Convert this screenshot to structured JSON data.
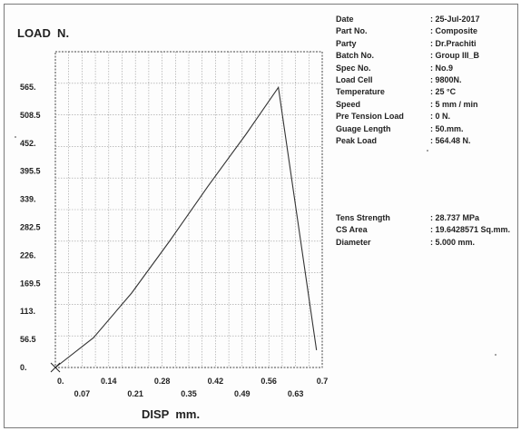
{
  "chart_data": {
    "type": "line",
    "ylabel": "LOAD  N.",
    "xlabel": "DISP  mm.",
    "xlim": [
      0,
      0.7
    ],
    "ylim": [
      0,
      565
    ],
    "x_ticks_row1": [
      "0.",
      "0.14",
      "0.28",
      "0.42",
      "0.56",
      "0.7"
    ],
    "x_ticks_row2": [
      "0.07",
      "0.21",
      "0.35",
      "0.49",
      "0.63"
    ],
    "y_ticks": [
      "0.",
      "56.5",
      "113.",
      "169.5",
      "226.",
      "282.5",
      "339.",
      "395.5",
      "452.",
      "508.5",
      "565."
    ],
    "grid": true,
    "series": [
      {
        "x": [
          0.0,
          0.1,
          0.2,
          0.3,
          0.4,
          0.5,
          0.585,
          0.685
        ],
        "y": [
          0,
          60,
          150,
          255,
          365,
          470,
          564.48,
          35
        ]
      }
    ]
  },
  "info": [
    {
      "key": "Date",
      "value": ": 25-Jul-2017"
    },
    {
      "key": "Part No.",
      "value": ": Composite"
    },
    {
      "key": "Party",
      "value": ": Dr.Prachiti"
    },
    {
      "key": "Batch No.",
      "value": ": Group III_B"
    },
    {
      "key": "Spec No.",
      "value": ": No.9"
    },
    {
      "key": "Load Cell",
      "value": ": 9800N."
    },
    {
      "key": "Temperature",
      "value": ": 25 °C"
    },
    {
      "key": "Speed",
      "value": ": 5 mm / min"
    },
    {
      "key": "Pre Tension Load",
      "value": ": 0 N."
    },
    {
      "key": "Guage Length",
      "value": ": 50.mm."
    },
    {
      "key": "Peak Load",
      "value": ": 564.48 N."
    }
  ],
  "results": [
    {
      "key": "Tens Strength",
      "value": ": 28.737 MPa"
    },
    {
      "key": "CS Area",
      "value": ": 19.6428571 Sq.mm."
    },
    {
      "key": "Diameter",
      "value": ": 5.000 mm."
    }
  ]
}
